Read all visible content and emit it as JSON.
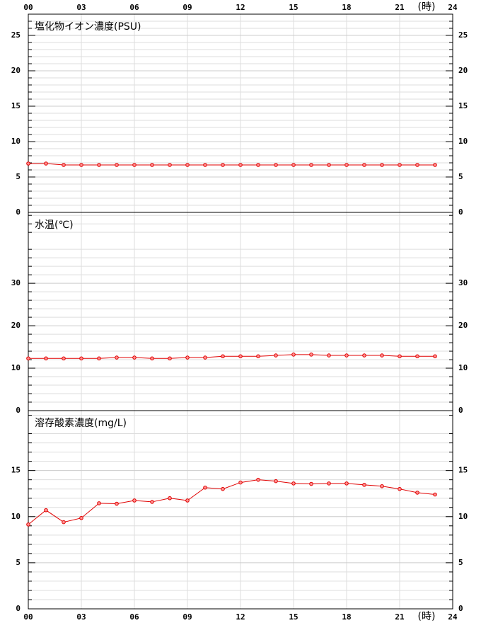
{
  "chart_data": [
    {
      "type": "line",
      "title": "塩化物イオン濃度(PSU)",
      "x_label": "(時)",
      "x": [
        0,
        1,
        2,
        3,
        4,
        5,
        6,
        7,
        8,
        9,
        10,
        11,
        12,
        13,
        14,
        15,
        16,
        17,
        18,
        19,
        20,
        21,
        22,
        23
      ],
      "values": [
        6.9,
        6.9,
        6.7,
        6.7,
        6.7,
        6.7,
        6.7,
        6.7,
        6.7,
        6.7,
        6.7,
        6.7,
        6.7,
        6.7,
        6.7,
        6.7,
        6.7,
        6.7,
        6.7,
        6.7,
        6.7,
        6.7,
        6.7,
        6.7
      ],
      "color": "#e00000",
      "xlim": [
        0,
        24
      ],
      "xticks": [
        {
          "value": 0,
          "label": "00"
        },
        {
          "value": 3,
          "label": "03"
        },
        {
          "value": 6,
          "label": "06"
        },
        {
          "value": 9,
          "label": "09"
        },
        12,
        15,
        18,
        21,
        24
      ],
      "ylim": [
        0,
        28
      ],
      "yticks": [
        0,
        5,
        10,
        15,
        20,
        25
      ],
      "grid": true
    },
    {
      "type": "line",
      "title": "水温(℃)",
      "x": [
        0,
        1,
        2,
        3,
        4,
        5,
        6,
        7,
        8,
        9,
        10,
        11,
        12,
        13,
        14,
        15,
        16,
        17,
        18,
        19,
        20,
        21,
        22,
        23
      ],
      "values": [
        12.3,
        12.3,
        12.3,
        12.3,
        12.3,
        12.5,
        12.5,
        12.3,
        12.3,
        12.5,
        12.5,
        12.8,
        12.8,
        12.8,
        13.0,
        13.2,
        13.2,
        13.0,
        13.0,
        13.0,
        13.0,
        12.8,
        12.8,
        12.8
      ],
      "color": "#e00000",
      "xlim": [
        0,
        24
      ],
      "xticks": [
        {
          "value": 0,
          "label": "00"
        },
        {
          "value": 3,
          "label": "03"
        },
        {
          "value": 6,
          "label": "06"
        },
        {
          "value": 9,
          "label": "09"
        },
        12,
        15,
        18,
        21,
        24
      ],
      "ylim": [
        0,
        46.7
      ],
      "yticks": [
        0,
        10,
        20,
        30
      ],
      "grid": true
    },
    {
      "type": "line",
      "title": "溶存酸素濃度(mg/L)",
      "x_label": "(時)",
      "x": [
        0,
        1,
        2,
        3,
        4,
        5,
        6,
        7,
        8,
        9,
        10,
        11,
        12,
        13,
        14,
        15,
        16,
        17,
        18,
        19,
        20,
        21,
        22,
        23
      ],
      "values": [
        9.15,
        10.7,
        9.4,
        9.85,
        11.45,
        11.4,
        11.75,
        11.6,
        12.0,
        11.75,
        13.15,
        13.0,
        13.7,
        14.0,
        13.85,
        13.6,
        13.55,
        13.6,
        13.6,
        13.45,
        13.3,
        13.0,
        12.6,
        12.4
      ],
      "color": "#e00000",
      "xlim": [
        0,
        24
      ],
      "xticks": [
        {
          "value": 0,
          "label": "00"
        },
        {
          "value": 3,
          "label": "03"
        },
        {
          "value": 6,
          "label": "06"
        },
        {
          "value": 9,
          "label": "09"
        },
        12,
        15,
        18,
        21,
        24
      ],
      "ylim": [
        0,
        21.5
      ],
      "yticks": [
        0,
        5,
        10,
        15
      ],
      "grid": true
    }
  ]
}
